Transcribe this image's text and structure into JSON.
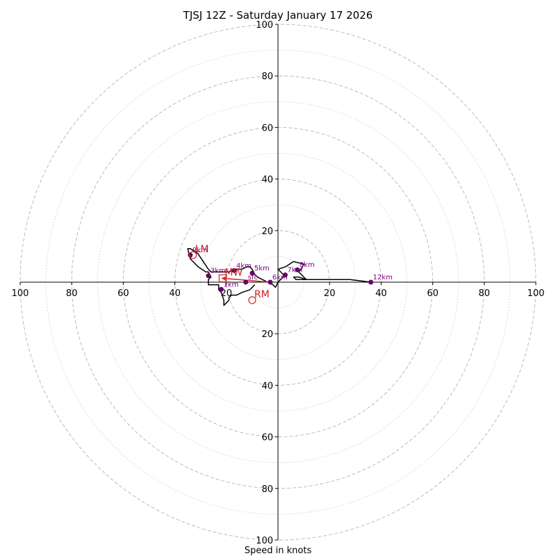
{
  "chart_data": {
    "type": "hodograph",
    "title": "TJSJ 12Z - Saturday January 17 2026",
    "xlabel": "Speed in knots",
    "xlim": [
      -100,
      100
    ],
    "ylim": [
      -100,
      100
    ],
    "rings_dashed": [
      20,
      40,
      60,
      80,
      100
    ],
    "rings_dotted": [
      10,
      30,
      50,
      70,
      90
    ],
    "x_ticks": [
      "100",
      "80",
      "60",
      "40",
      "20",
      "20",
      "40",
      "60",
      "80",
      "100"
    ],
    "x_tick_values": [
      -100,
      -80,
      -60,
      -40,
      -20,
      20,
      40,
      60,
      80,
      100
    ],
    "y_ticks": [
      "100",
      "80",
      "60",
      "40",
      "20",
      "20",
      "40",
      "60",
      "80",
      "100"
    ],
    "y_tick_values": [
      100,
      80,
      60,
      40,
      20,
      -20,
      -40,
      -60,
      -80,
      -100
    ],
    "colors": {
      "trace": "#000000",
      "heights": "#660066",
      "height_text": "#800080",
      "motion": "#cc2222",
      "grid": "#bbbbbb"
    },
    "trace": [
      [
        -9,
        -1
      ],
      [
        -11,
        -3
      ],
      [
        -14,
        -4
      ],
      [
        -16,
        -5
      ],
      [
        -18,
        -5
      ],
      [
        -19,
        -6
      ],
      [
        -19,
        -7
      ],
      [
        -20,
        -8
      ],
      [
        -21,
        -9
      ],
      [
        -21,
        -7
      ],
      [
        -22,
        -4
      ],
      [
        -23,
        -3
      ],
      [
        -23,
        -1
      ],
      [
        -27,
        -1
      ],
      [
        -27,
        1
      ],
      [
        -26,
        2
      ],
      [
        -27,
        4
      ],
      [
        -28,
        4
      ],
      [
        -31,
        6
      ],
      [
        -34,
        9
      ],
      [
        -35,
        13
      ],
      [
        -34,
        13
      ],
      [
        -31,
        11
      ],
      [
        -29,
        8
      ],
      [
        -27,
        5
      ],
      [
        -26,
        4
      ],
      [
        -23,
        4
      ],
      [
        -19,
        4
      ],
      [
        -17,
        5
      ],
      [
        -15,
        5
      ],
      [
        -14,
        5
      ],
      [
        -12,
        6
      ],
      [
        -11,
        6
      ],
      [
        -10,
        5
      ],
      [
        -9,
        3
      ],
      [
        -8,
        2
      ],
      [
        -6,
        1
      ],
      [
        -4,
        0
      ],
      [
        -2,
        -1
      ],
      [
        -1,
        -2
      ],
      [
        0,
        0
      ],
      [
        1,
        1
      ],
      [
        2,
        2
      ],
      [
        3,
        3
      ],
      [
        3,
        2
      ],
      [
        2,
        3
      ],
      [
        0,
        5
      ],
      [
        3,
        6
      ],
      [
        6,
        8
      ],
      [
        10,
        7
      ],
      [
        9,
        5
      ],
      [
        8,
        4
      ],
      [
        9,
        3
      ],
      [
        10,
        2
      ],
      [
        11,
        1
      ],
      [
        8,
        2
      ],
      [
        6,
        2
      ],
      [
        7,
        1
      ],
      [
        12,
        1
      ],
      [
        20,
        1
      ],
      [
        28,
        1
      ],
      [
        36,
        0
      ]
    ],
    "heights": [
      {
        "label": "sfc",
        "u": -12.5,
        "v": 0
      },
      {
        "label": "1km",
        "u": -22,
        "v": -2.8
      },
      {
        "label": "3km",
        "u": -27,
        "v": 2.5
      },
      {
        "label": "4km",
        "u": -17,
        "v": 4.5
      },
      {
        "label": "5km",
        "u": -10,
        "v": 3.5
      },
      {
        "label": "6km",
        "u": -3,
        "v": 0
      },
      {
        "label": "7km",
        "u": 2.8,
        "v": 2.8
      },
      {
        "label": "8km",
        "u": 7.5,
        "v": 4.8
      },
      {
        "label": "9km",
        "u": -34,
        "v": 10.5
      },
      {
        "label": "12km",
        "u": 36,
        "v": 0
      }
    ],
    "motions": [
      {
        "label": "LM",
        "u": -33,
        "v": 10.5,
        "marker": "circle"
      },
      {
        "label": "RM",
        "u": -10,
        "v": -7,
        "marker": "circle"
      },
      {
        "label": "MW",
        "u": -21.5,
        "v": 1.5,
        "marker": "square"
      }
    ],
    "shear_vector": {
      "from": [
        -3,
        0
      ],
      "to": [
        -21.5,
        1.5
      ]
    }
  }
}
